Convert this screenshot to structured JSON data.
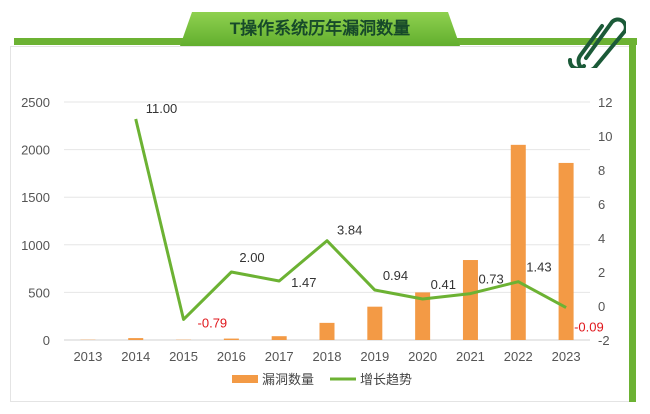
{
  "title": "T操作系统历年漏洞数量",
  "chart_data": {
    "type": "bar+line",
    "title": "T操作系统历年漏洞数量",
    "categories": [
      "2013",
      "2014",
      "2015",
      "2016",
      "2017",
      "2018",
      "2019",
      "2020",
      "2021",
      "2022",
      "2023"
    ],
    "series": [
      {
        "name": "漏洞数量",
        "type": "bar",
        "axis": "left",
        "color": "#f39a45",
        "values": [
          3,
          20,
          3,
          15,
          40,
          180,
          350,
          500,
          840,
          2050,
          1860
        ]
      },
      {
        "name": "增长趋势",
        "type": "line",
        "axis": "right",
        "color": "#6cb233",
        "values": [
          null,
          11.0,
          -0.79,
          2.0,
          1.47,
          3.84,
          0.94,
          0.41,
          0.73,
          1.43,
          -0.09
        ],
        "labels": [
          "",
          "11.00",
          "-0.79",
          "2.00",
          "1.47",
          "3.84",
          "0.94",
          "0.41",
          "0.73",
          "1.43",
          "-0.09"
        ]
      }
    ],
    "y_left": {
      "range": [
        0,
        2500
      ],
      "ticks": [
        "0",
        "500",
        "1000",
        "1500",
        "2000",
        "2500"
      ]
    },
    "y_right": {
      "range": [
        -2,
        12
      ],
      "ticks": [
        "-2",
        "0",
        "2",
        "4",
        "6",
        "8",
        "10",
        "12"
      ]
    },
    "grid": true,
    "legend": "bottom"
  }
}
